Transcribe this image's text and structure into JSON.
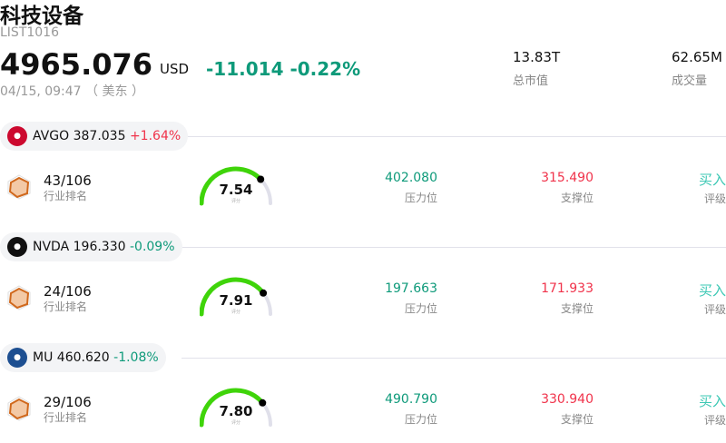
{
  "header": {
    "title": "科技设备",
    "code": "LIST1016",
    "price": "4965.076",
    "currency": "USD",
    "change": "-11.014",
    "change_pct": "-0.22%",
    "time": "04/15, 09:47 （ 美东 ）",
    "stats": [
      {
        "value": "13.83T",
        "label": "总市值"
      },
      {
        "value": "62.65M",
        "label": "成交量"
      }
    ]
  },
  "colors": {
    "up": "#f0334b",
    "down": "#0e9a7a",
    "rating": "#3cc8b4",
    "gauge": "#3fd40a"
  },
  "stocks": [
    {
      "ticker": "AVGO",
      "price": "387.035",
      "pct": "+1.64%",
      "dir": "up",
      "logo_color": "#cc092f",
      "rank": "43/106",
      "rank_label": "行业排名",
      "score": "7.54",
      "score_label": "评分",
      "resistance": "402.080",
      "resistance_label": "压力位",
      "support": "315.490",
      "support_label": "支撑位",
      "rating": "买入",
      "rating_label": "评级"
    },
    {
      "ticker": "NVDA",
      "price": "196.330",
      "pct": "-0.09%",
      "dir": "down",
      "logo_color": "#111111",
      "rank": "24/106",
      "rank_label": "行业排名",
      "score": "7.91",
      "score_label": "评分",
      "resistance": "197.663",
      "resistance_label": "压力位",
      "support": "171.933",
      "support_label": "支撑位",
      "rating": "买入",
      "rating_label": "评级"
    },
    {
      "ticker": "MU",
      "price": "460.620",
      "pct": "-1.08%",
      "dir": "down",
      "logo_color": "#1d4f91",
      "rank": "29/106",
      "rank_label": "行业排名",
      "score": "7.80",
      "score_label": "评分",
      "resistance": "490.790",
      "resistance_label": "压力位",
      "support": "330.940",
      "support_label": "支撑位",
      "rating": "买入",
      "rating_label": "评级"
    }
  ]
}
